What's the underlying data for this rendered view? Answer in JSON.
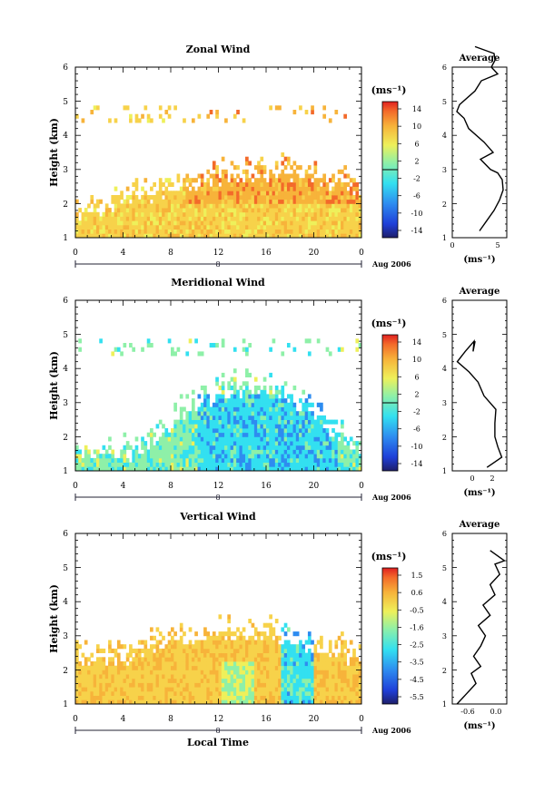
{
  "chart_data": [
    {
      "type": "heatmap",
      "title": "Zonal Wind",
      "xlabel": "",
      "ylabel": "Height (km)",
      "xlim": [
        0,
        24
      ],
      "ylim": [
        1,
        6
      ],
      "x_ticks": [
        "0",
        "4",
        "8",
        "12",
        "16",
        "20",
        "0"
      ],
      "y_ticks": [
        "1",
        "2",
        "3",
        "4",
        "5",
        "6"
      ],
      "date_bar": {
        "day": "8",
        "date": "Aug 2006"
      },
      "colorbar": {
        "unit": "(ms⁻¹)",
        "labels": [
          "14",
          "10",
          "6",
          "2",
          "-2",
          "-6",
          "-10",
          "-14"
        ],
        "range": [
          -16,
          16
        ]
      },
      "profile": {
        "title": "Average",
        "xlabel": "(ms⁻¹)",
        "x_ticks": [
          "0",
          "5"
        ],
        "xlim": [
          0,
          6
        ],
        "y_ticks": [
          "1",
          "2",
          "3",
          "4",
          "5",
          "6"
        ],
        "points": [
          [
            3.0,
            1.2
          ],
          [
            3.8,
            1.5
          ],
          [
            4.6,
            1.8
          ],
          [
            5.2,
            2.1
          ],
          [
            5.6,
            2.4
          ],
          [
            5.5,
            2.7
          ],
          [
            5.0,
            2.9
          ],
          [
            4.2,
            3.0
          ],
          [
            3.1,
            3.3
          ],
          [
            4.5,
            3.5
          ],
          [
            3.5,
            3.8
          ],
          [
            1.8,
            4.2
          ],
          [
            1.3,
            4.5
          ],
          [
            0.5,
            4.7
          ],
          [
            0.8,
            4.9
          ],
          [
            2.5,
            5.3
          ],
          [
            3.2,
            5.6
          ],
          [
            5.0,
            5.8
          ],
          [
            4.3,
            6.0
          ],
          [
            4.7,
            6.2
          ],
          [
            4.6,
            6.4
          ],
          [
            2.5,
            6.6
          ]
        ]
      }
    },
    {
      "type": "heatmap",
      "title": "Meridional Wind",
      "xlabel": "",
      "ylabel": "Height (km)",
      "xlim": [
        0,
        24
      ],
      "ylim": [
        1,
        6
      ],
      "x_ticks": [
        "0",
        "4",
        "8",
        "12",
        "16",
        "20",
        "0"
      ],
      "y_ticks": [
        "1",
        "2",
        "3",
        "4",
        "5",
        "6"
      ],
      "date_bar": {
        "day": "8",
        "date": "Aug 2006"
      },
      "colorbar": {
        "unit": "(ms⁻¹)",
        "labels": [
          "14",
          "10",
          "6",
          "2",
          "-2",
          "-6",
          "-10",
          "-14"
        ],
        "range": [
          -16,
          16
        ]
      },
      "profile": {
        "title": "Average",
        "xlabel": "(ms⁻¹)",
        "x_ticks": [
          "0",
          "2"
        ],
        "xlim": [
          -2,
          3.5
        ],
        "y_ticks": [
          "1",
          "2",
          "3",
          "4",
          "5",
          "6"
        ],
        "points": [
          [
            1.5,
            1.1
          ],
          [
            3.0,
            1.4
          ],
          [
            2.6,
            1.7
          ],
          [
            2.3,
            2.0
          ],
          [
            2.3,
            2.4
          ],
          [
            2.4,
            2.8
          ],
          [
            1.2,
            3.2
          ],
          [
            0.6,
            3.6
          ],
          [
            -0.3,
            3.9
          ],
          [
            -1.5,
            4.2
          ],
          [
            -0.7,
            4.5
          ],
          [
            0.2,
            4.8
          ],
          [
            0.1,
            4.5
          ],
          [
            0.3,
            4.8
          ]
        ]
      }
    },
    {
      "type": "heatmap",
      "title": "Vertical Wind",
      "xlabel": "Local Time",
      "ylabel": "Height (km)",
      "xlim": [
        0,
        24
      ],
      "ylim": [
        1,
        6
      ],
      "x_ticks": [
        "0",
        "4",
        "8",
        "12",
        "16",
        "20",
        "0"
      ],
      "y_ticks": [
        "1",
        "2",
        "3",
        "4",
        "5",
        "6"
      ],
      "date_bar": {
        "day": "8",
        "date": "Aug 2006"
      },
      "colorbar": {
        "unit": "(ms⁻¹)",
        "labels": [
          "1.5",
          "0.6",
          "-0.5",
          "-1.6",
          "-2.5",
          "-3.5",
          "-4.5",
          "-5.5"
        ],
        "range": [
          -6,
          2
        ]
      },
      "profile": {
        "title": "Average",
        "xlabel": "(ms⁻¹)",
        "x_ticks": [
          "-0.6",
          "0.0"
        ],
        "xlim": [
          -0.9,
          0.25
        ],
        "y_ticks": [
          "1",
          "2",
          "3",
          "4",
          "5",
          "6"
        ],
        "points": [
          [
            -0.8,
            1.0
          ],
          [
            -0.6,
            1.3
          ],
          [
            -0.4,
            1.6
          ],
          [
            -0.5,
            1.9
          ],
          [
            -0.3,
            2.1
          ],
          [
            -0.45,
            2.4
          ],
          [
            -0.3,
            2.7
          ],
          [
            -0.2,
            3.0
          ],
          [
            -0.35,
            3.3
          ],
          [
            -0.1,
            3.6
          ],
          [
            -0.25,
            3.9
          ],
          [
            0.0,
            4.2
          ],
          [
            -0.1,
            4.5
          ],
          [
            0.1,
            4.8
          ],
          [
            0.0,
            5.1
          ],
          [
            0.2,
            5.2
          ],
          [
            -0.1,
            5.5
          ]
        ]
      }
    }
  ]
}
